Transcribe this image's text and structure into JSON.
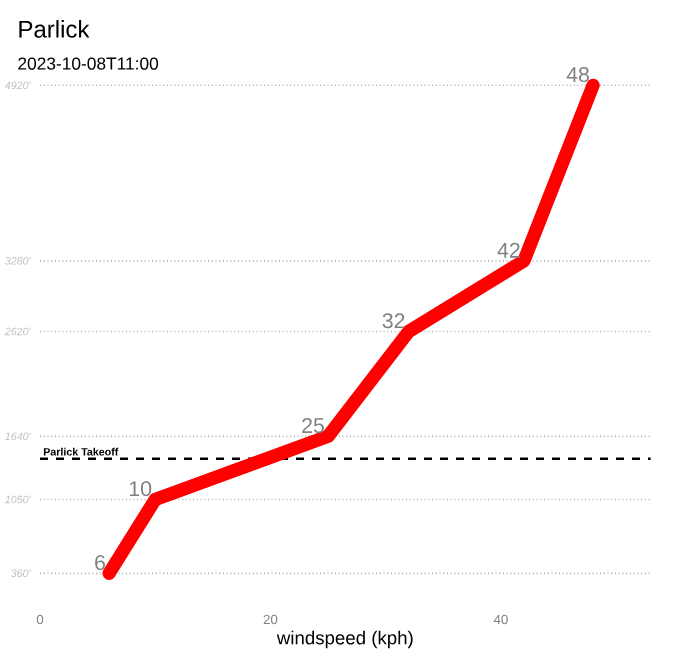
{
  "chart_data": {
    "type": "line",
    "title": "Parlick",
    "subtitle": "2023-10-08T11:00",
    "xlabel": "windspeed (kph)",
    "x": [
      6,
      10,
      25,
      32,
      42,
      48
    ],
    "series": [
      {
        "values": [
          360,
          1050,
          1640,
          2620,
          3280,
          4920
        ],
        "color": "#ff0000"
      }
    ],
    "xlim": [
      0,
      53
    ],
    "xticks": [
      0,
      20,
      40
    ],
    "ylim": [
      360,
      4920
    ],
    "yticks": [
      {
        "value": 360,
        "label": "360'"
      },
      {
        "value": 1050,
        "label": "1050'"
      },
      {
        "value": 1640,
        "label": "1640'"
      },
      {
        "value": 2620,
        "label": "2620'"
      },
      {
        "value": 3280,
        "label": "3280'"
      },
      {
        "value": 4920,
        "label": "4920'"
      }
    ],
    "grid": "y",
    "ref_lines": [
      {
        "axis": "y",
        "value": 1430,
        "label": "Parlick Takeoff",
        "color": "#000000",
        "line_style": "dashed"
      }
    ],
    "annotations": [
      {
        "text": "6",
        "x": 6,
        "y": 360
      },
      {
        "text": "10",
        "x": 10,
        "y": 1050
      },
      {
        "text": "25",
        "x": 25,
        "y": 1640
      },
      {
        "text": "32",
        "x": 32,
        "y": 2620
      },
      {
        "text": "42",
        "x": 42,
        "y": 3280
      },
      {
        "text": "48",
        "x": 48,
        "y": 4920
      }
    ]
  }
}
